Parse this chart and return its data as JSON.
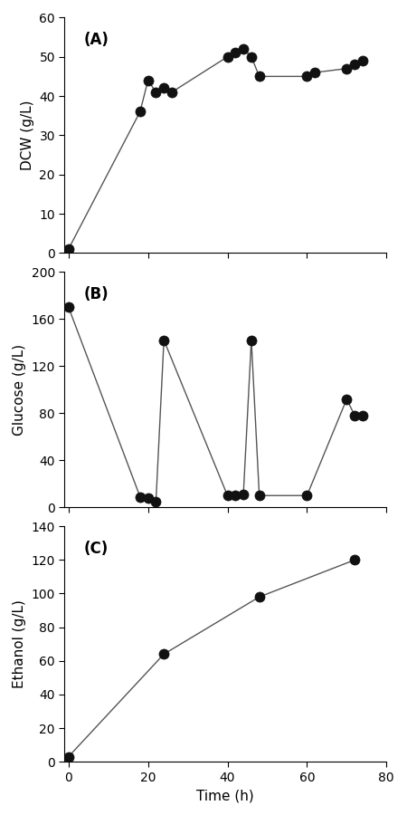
{
  "A": {
    "x": [
      0,
      18,
      20,
      22,
      24,
      26,
      40,
      42,
      44,
      46,
      48,
      60,
      62,
      70,
      72,
      74
    ],
    "y": [
      1,
      36,
      44,
      41,
      42,
      41,
      50,
      51,
      52,
      50,
      45,
      45,
      46,
      47,
      48,
      49
    ],
    "ylabel": "DCW (g/L)",
    "ylim": [
      0,
      60
    ],
    "yticks": [
      0,
      10,
      20,
      30,
      40,
      50,
      60
    ],
    "label": "(A)"
  },
  "B": {
    "x": [
      0,
      18,
      20,
      22,
      24,
      40,
      42,
      44,
      46,
      48,
      60,
      70,
      72,
      74
    ],
    "y": [
      170,
      9,
      8,
      5,
      142,
      10,
      10,
      11,
      142,
      10,
      10,
      92,
      78,
      78
    ],
    "ylabel": "Glucose (g/L)",
    "ylim": [
      0,
      200
    ],
    "yticks": [
      0,
      40,
      80,
      120,
      160,
      200
    ],
    "label": "(B)"
  },
  "C": {
    "x": [
      0,
      24,
      48,
      72
    ],
    "y": [
      3,
      64,
      98,
      120
    ],
    "ylabel": "Ethanol (g/L)",
    "ylim": [
      0,
      140
    ],
    "yticks": [
      0,
      20,
      40,
      60,
      80,
      100,
      120,
      140
    ],
    "label": "(C)"
  },
  "xlabel": "Time (h)",
  "xlim": [
    -1,
    80
  ],
  "xticks": [
    0,
    20,
    40,
    60,
    80
  ],
  "marker": "o",
  "markersize": 8,
  "markerfacecolor": "#111111",
  "markeredgecolor": "#111111",
  "linecolor": "#555555",
  "linewidth": 1.0,
  "background_color": "#ffffff"
}
